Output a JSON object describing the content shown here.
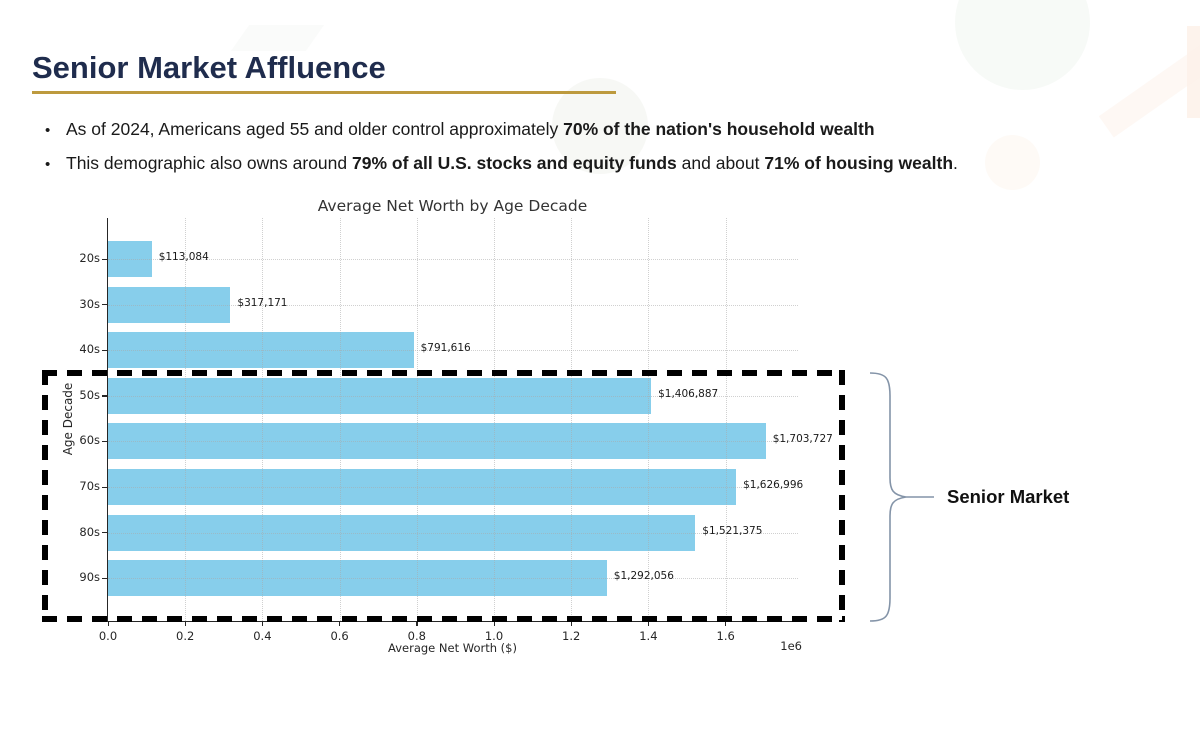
{
  "slide": {
    "title": "Senior Market Affluence",
    "bullets": [
      {
        "runs": [
          {
            "text": "As of 2024, Americans aged 55 and older control approximately ",
            "bold": false
          },
          {
            "text": "70% of the nation's household wealth",
            "bold": true
          }
        ]
      },
      {
        "runs": [
          {
            "text": "This demographic also owns around ",
            "bold": false
          },
          {
            "text": "79% of all U.S. stocks and equity funds",
            "bold": true
          },
          {
            "text": " and about ",
            "bold": false
          },
          {
            "text": "71% of housing wealth",
            "bold": true
          },
          {
            "text": ".",
            "bold": false
          }
        ]
      }
    ]
  },
  "chart_data": {
    "type": "bar",
    "orientation": "horizontal",
    "title": "Average Net Worth by Age Decade",
    "xlabel": "Average Net Worth ($)",
    "ylabel": "Age Decade",
    "categories": [
      "20s",
      "30s",
      "40s",
      "50s",
      "60s",
      "70s",
      "80s",
      "90s"
    ],
    "values": [
      113084,
      317171,
      791616,
      1406887,
      1703727,
      1626996,
      1521375,
      1292056
    ],
    "value_labels": [
      "$113,084",
      "$317,171",
      "$791,616",
      "$1,406,887",
      "$1,703,727",
      "$1,626,996",
      "$1,521,375",
      "$1,292,056"
    ],
    "xlim": [
      0,
      1790000
    ],
    "x_tick_labels": [
      "0.0",
      "0.2",
      "0.4",
      "0.6",
      "0.8",
      "1.0",
      "1.2",
      "1.4",
      "1.6"
    ],
    "x_tick_values": [
      0,
      200000,
      400000,
      600000,
      800000,
      1000000,
      1200000,
      1400000,
      1600000
    ],
    "x_offset_label": "1e6",
    "bar_color": "#87CEEB",
    "grid": "dotted",
    "legend": "none"
  },
  "annotation": {
    "label": "Senior Market",
    "highlighted_categories": [
      "50s",
      "60s",
      "70s",
      "80s",
      "90s"
    ]
  },
  "colors": {
    "title_text": "#1f2c4d",
    "title_underline": "#bd9a3e",
    "body_text": "#1a1a1a",
    "bar": "#87CEEB",
    "axis_text": "#262626",
    "dashed_box": "#000000",
    "brace": "#8494a8"
  }
}
